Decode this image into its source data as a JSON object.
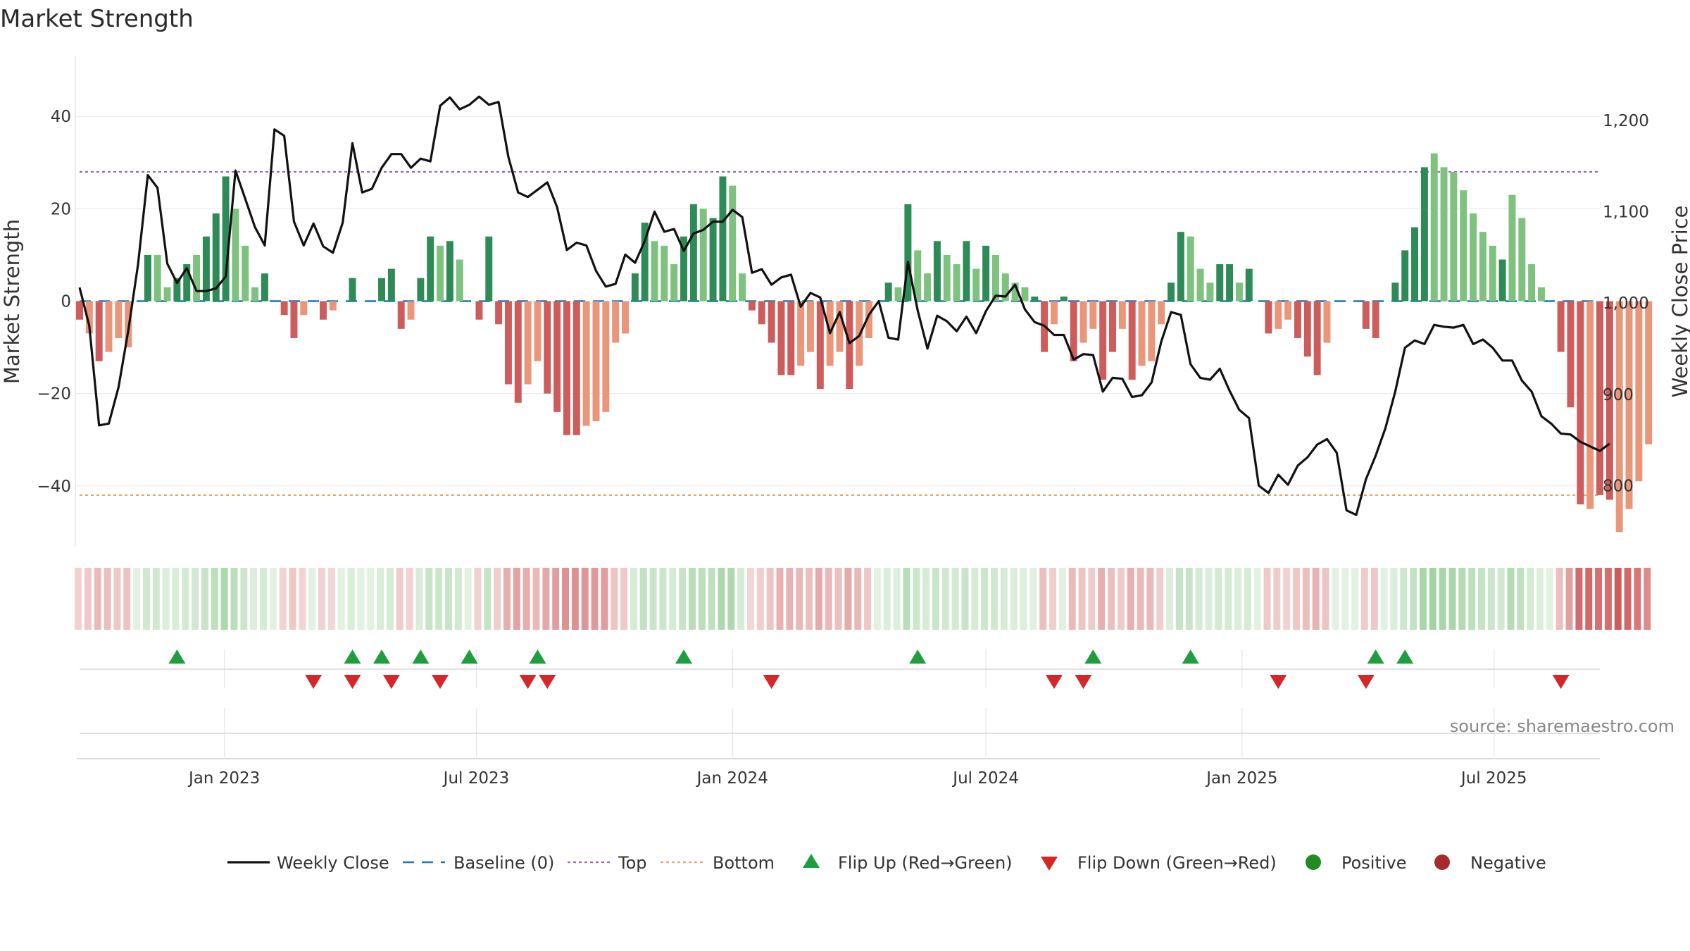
{
  "chart_data": {
    "type": "bar",
    "title": "Market Strength",
    "ylabel_left": "Market Strength",
    "ylabel_right": "Weekly Close Price",
    "source": "source: sharemaestro.com",
    "left_axis": {
      "range": [
        -53,
        53
      ],
      "ticks": [
        40,
        20,
        0,
        -20,
        -40
      ],
      "tick_labels": [
        "40",
        "20",
        "0",
        "−20",
        "−40"
      ]
    },
    "right_axis": {
      "range": [
        734,
        1270
      ],
      "ticks": [
        1200,
        1100,
        1000,
        900,
        800
      ],
      "tick_labels": [
        "1,200",
        "1,100",
        "1,000",
        "900",
        "800"
      ]
    },
    "x_axis": {
      "start": "2022-09-19",
      "end": "2025-09-15",
      "ticks": [
        "2023-01-01",
        "2023-07-01",
        "2024-01-01",
        "2024-07-01",
        "2025-01-01",
        "2025-07-01"
      ],
      "tick_labels": [
        "Jan 2023",
        "Jul 2023",
        "Jan 2024",
        "Jul 2024",
        "Jan 2025",
        "Jul 2025"
      ]
    },
    "top_line": 28,
    "bottom_line": -42,
    "baseline": 0,
    "grid": true,
    "colors": {
      "strong_pos": "#2e8b57",
      "weak_pos": "#7fc17f",
      "strong_neg": "#cd5c5c",
      "weak_neg": "#e9967a",
      "price": "#111111",
      "baseline": "#1f77b4",
      "top": "#9467bd",
      "bottom": "#f0a35e",
      "flip_up": "#1e9e3e",
      "flip_down": "#d62728",
      "positive": "#228b22",
      "negative": "#a52a2a"
    },
    "strength": [
      -4,
      -7,
      -13,
      -11,
      -8,
      -10,
      0,
      10,
      10,
      3,
      5,
      8,
      10,
      14,
      19,
      27,
      20,
      12,
      3,
      6,
      0,
      -3,
      -8,
      -3,
      0,
      -4,
      -2,
      0,
      5,
      0,
      0,
      5,
      7,
      -6,
      -4,
      5,
      14,
      12,
      13,
      9,
      0,
      -4,
      14,
      -5,
      -18,
      -22,
      -18,
      -13,
      -20,
      -24,
      -29,
      -29,
      -27,
      -26,
      -24,
      -9,
      -7,
      6,
      17,
      13,
      12,
      8,
      14,
      21,
      20,
      18,
      27,
      25,
      6,
      -2,
      -5,
      -9,
      -16,
      -16,
      -14,
      -11,
      -19,
      -14,
      -11,
      -19,
      -14,
      -8,
      0,
      4,
      3,
      21,
      11,
      6,
      13,
      10,
      8,
      13,
      7,
      12,
      10,
      6,
      4,
      3,
      1,
      -11,
      -5,
      1,
      -13,
      -9,
      -6,
      -17,
      -11,
      -6,
      -17,
      -14,
      -13,
      -5,
      4,
      15,
      14,
      7,
      4,
      8,
      8,
      4,
      7,
      0,
      -7,
      -6,
      -4,
      -8,
      -12,
      -16,
      -9,
      0,
      0,
      0,
      -6,
      -8,
      0,
      4,
      11,
      16,
      29,
      32,
      29,
      28,
      24,
      19,
      15,
      12,
      9,
      23,
      18,
      8,
      3,
      0,
      -11,
      -23,
      -44,
      -45,
      -42,
      -43,
      -50,
      -45,
      -39,
      -31
    ],
    "strength_strong": [
      1,
      0,
      1,
      0,
      0,
      0,
      0,
      1,
      0,
      0,
      1,
      1,
      0,
      1,
      1,
      1,
      0,
      0,
      0,
      1,
      0,
      1,
      1,
      0,
      0,
      1,
      0,
      0,
      1,
      0,
      1,
      1,
      1,
      1,
      0,
      1,
      1,
      0,
      1,
      0,
      0,
      1,
      1,
      1,
      1,
      1,
      0,
      0,
      1,
      1,
      1,
      1,
      0,
      0,
      0,
      0,
      0,
      1,
      1,
      0,
      0,
      0,
      1,
      1,
      0,
      1,
      1,
      0,
      0,
      1,
      1,
      1,
      1,
      1,
      0,
      0,
      1,
      0,
      0,
      1,
      0,
      0,
      0,
      1,
      0,
      1,
      0,
      0,
      1,
      0,
      0,
      1,
      0,
      1,
      0,
      0,
      0,
      0,
      1,
      1,
      0,
      1,
      1,
      0,
      0,
      1,
      1,
      0,
      1,
      0,
      0,
      0,
      1,
      1,
      0,
      0,
      0,
      1,
      1,
      0,
      1,
      0,
      1,
      0,
      0,
      1,
      1,
      1,
      0,
      0,
      0,
      0,
      1,
      1,
      0,
      1,
      1,
      1,
      1,
      0,
      0,
      0,
      0,
      0,
      0,
      0,
      1,
      0,
      0,
      0,
      0,
      1,
      1,
      1,
      1,
      0,
      1,
      1,
      0,
      0
    ],
    "price": [
      1017,
      975,
      866,
      868,
      908,
      970,
      1042,
      1140,
      1126,
      1043,
      1022,
      1038,
      1013,
      1013,
      1016,
      1029,
      1145,
      1114,
      1083,
      1063,
      1190,
      1183,
      1089,
      1063,
      1087,
      1062,
      1055,
      1088,
      1175,
      1121,
      1125,
      1148,
      1163,
      1163,
      1148,
      1158,
      1155,
      1216,
      1225,
      1212,
      1217,
      1226,
      1217,
      1220,
      1160,
      1121,
      1116,
      1124,
      1132,
      1105,
      1058,
      1066,
      1063,
      1035,
      1018,
      1021,
      1053,
      1044,
      1068,
      1100,
      1078,
      1081,
      1057,
      1076,
      1080,
      1089,
      1089,
      1102,
      1094,
      1033,
      1037,
      1020,
      1028,
      1031,
      996,
      1011,
      1006,
      967,
      990,
      956,
      964,
      987,
      1002,
      962,
      960,
      1045,
      992,
      950,
      986,
      980,
      969,
      985,
      967,
      991,
      1008,
      1007,
      1020,
      993,
      979,
      975,
      965,
      965,
      938,
      944,
      943,
      903,
      918,
      917,
      897,
      899,
      913,
      958,
      990,
      987,
      933,
      918,
      916,
      928,
      904,
      883,
      874,
      800,
      792,
      812,
      801,
      822,
      831,
      845,
      851,
      836,
      773,
      768,
      807,
      833,
      863,
      903,
      951,
      959,
      955,
      976,
      974,
      973,
      976,
      955,
      960,
      951,
      937,
      937,
      915,
      903,
      876,
      868,
      857,
      856,
      848,
      843,
      838,
      846
    ],
    "flips_up": [
      "2022-11-28",
      "2023-04-03",
      "2023-04-24",
      "2023-05-22",
      "2023-06-26",
      "2023-08-14",
      "2023-11-27",
      "2024-05-13",
      "2024-09-16",
      "2024-11-25",
      "2025-04-07",
      "2025-04-28"
    ],
    "flips_down": [
      "2023-03-06",
      "2023-04-03",
      "2023-05-01",
      "2023-06-05",
      "2023-08-07",
      "2023-08-21",
      "2024-01-29",
      "2024-08-19",
      "2024-09-09",
      "2025-01-27",
      "2025-03-31",
      "2025-08-18"
    ],
    "legend": [
      {
        "key": "weekly_close",
        "label": "Weekly Close"
      },
      {
        "key": "baseline",
        "label": "Baseline (0)"
      },
      {
        "key": "top",
        "label": "Top"
      },
      {
        "key": "bottom",
        "label": "Bottom"
      },
      {
        "key": "flip_up",
        "label": "Flip Up (Red→Green)"
      },
      {
        "key": "flip_down",
        "label": "Flip Down (Green→Red)"
      },
      {
        "key": "positive",
        "label": "Positive"
      },
      {
        "key": "negative",
        "label": "Negative"
      }
    ],
    "legend_position": "bottom-center"
  }
}
